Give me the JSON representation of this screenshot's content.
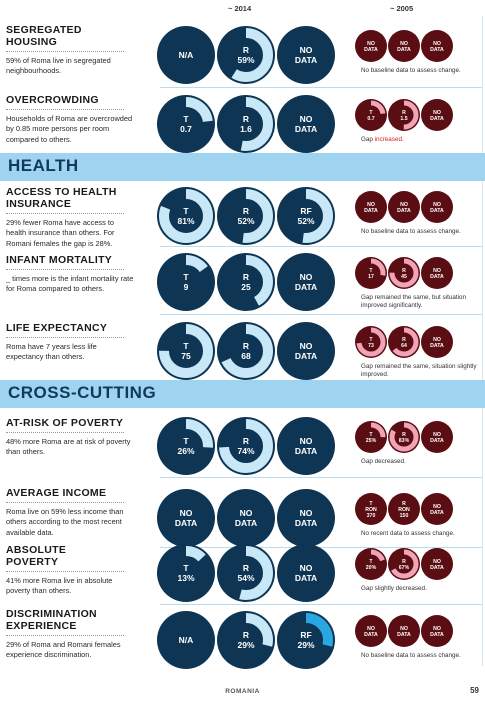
{
  "header": {
    "year_a": "~ 2014",
    "year_b": "~ 2005"
  },
  "colors": {
    "navy": "#0e3554",
    "light_ring": "#c8e8f8",
    "bright_ring": "#2aa7e0",
    "maroon": "#5a0e14",
    "pink_ring": "#f0a4b6"
  },
  "bands": {
    "health": "HEALTH",
    "cross": "CROSS-CUTTING"
  },
  "rows": [
    {
      "title": [
        "SEGREGATED",
        "HOUSING"
      ],
      "desc": "59% of Roma live in segregated neighbourhoods.",
      "big": [
        {
          "label": "N/A",
          "value": ""
        },
        {
          "label": "R",
          "value": "59%",
          "fill": 0.59,
          "ring": "light"
        },
        {
          "label": "NO",
          "value": "DATA"
        }
      ],
      "small": [
        {
          "label": "NO",
          "value": "DATA"
        },
        {
          "label": "NO",
          "value": "DATA"
        },
        {
          "label": "NO",
          "value": "DATA"
        }
      ],
      "note": "No baseline data to assess change.",
      "note_red": ""
    },
    {
      "title": [
        "OVERCROWDING"
      ],
      "desc": "Households of Roma are overcrowded by 0.85 more persons per room compared to others.",
      "big": [
        {
          "label": "T",
          "value": "0.7",
          "fill": 0.23,
          "ring": "light"
        },
        {
          "label": "R",
          "value": "1.6",
          "fill": 0.53,
          "ring": "light"
        },
        {
          "label": "NO",
          "value": "DATA"
        }
      ],
      "small": [
        {
          "label": "T",
          "value": "0.7",
          "fill": 0.23,
          "ring": "pink"
        },
        {
          "label": "R",
          "value": "1.5",
          "fill": 0.5,
          "ring": "pink"
        },
        {
          "label": "NO",
          "value": "DATA"
        }
      ],
      "note": "Gap ",
      "note_red": "increased."
    },
    {
      "title": [
        "ACCESS TO HEALTH",
        "INSURANCE"
      ],
      "desc": "29% fewer Roma have access to health insurance than others. For Romani females the gap is 28%.",
      "big": [
        {
          "label": "T",
          "value": "81%",
          "fill": 0.81,
          "ring": "light"
        },
        {
          "label": "R",
          "value": "52%",
          "fill": 0.52,
          "ring": "light"
        },
        {
          "label": "RF",
          "value": "52%",
          "fill": 0.52,
          "ring": "light"
        }
      ],
      "small": [
        {
          "label": "NO",
          "value": "DATA"
        },
        {
          "label": "NO",
          "value": "DATA"
        },
        {
          "label": "NO",
          "value": "DATA"
        }
      ],
      "note": "No baseline data to assess change.",
      "note_red": ""
    },
    {
      "title": [
        "INFANT MORTALITY"
      ],
      "desc": "_ times more is the infant mortality rate for Roma compared to others.",
      "big": [
        {
          "label": "T",
          "value": "9",
          "fill": 0.15,
          "ring": "light"
        },
        {
          "label": "R",
          "value": "25",
          "fill": 0.42,
          "ring": "light"
        },
        {
          "label": "NO",
          "value": "DATA"
        }
      ],
      "small": [
        {
          "label": "T",
          "value": "17",
          "fill": 0.28,
          "ring": "pink"
        },
        {
          "label": "R",
          "value": "45",
          "fill": 0.75,
          "ring": "pink"
        },
        {
          "label": "NO",
          "value": "DATA"
        }
      ],
      "note": "Gap remained the same, but situation improved significantly.",
      "note_red": ""
    },
    {
      "title": [
        "LIFE EXPECTANCY"
      ],
      "desc": "Roma have 7 years less life expectancy than others.",
      "big": [
        {
          "label": "T",
          "value": "75",
          "fill": 0.75,
          "ring": "light"
        },
        {
          "label": "R",
          "value": "68",
          "fill": 0.68,
          "ring": "light"
        },
        {
          "label": "NO",
          "value": "DATA"
        }
      ],
      "small": [
        {
          "label": "T",
          "value": "73",
          "fill": 0.73,
          "ring": "pink"
        },
        {
          "label": "R",
          "value": "64",
          "fill": 0.64,
          "ring": "pink"
        },
        {
          "label": "NO",
          "value": "DATA"
        }
      ],
      "note": "Gap remained the same, situation slightly improved.",
      "note_red": ""
    },
    {
      "title": [
        "AT-RISK OF POVERTY"
      ],
      "desc": "48% more Roma are at risk of poverty than others.",
      "big": [
        {
          "label": "T",
          "value": "26%",
          "fill": 0.26,
          "ring": "light"
        },
        {
          "label": "R",
          "value": "74%",
          "fill": 0.74,
          "ring": "light"
        },
        {
          "label": "NO",
          "value": "DATA"
        }
      ],
      "small": [
        {
          "label": "T",
          "value": "25%",
          "fill": 0.25,
          "ring": "pink"
        },
        {
          "label": "R",
          "value": "83%",
          "fill": 0.83,
          "ring": "pink"
        },
        {
          "label": "NO",
          "value": "DATA"
        }
      ],
      "note": "Gap decreased.",
      "note_red": ""
    },
    {
      "title": [
        "AVERAGE INCOME"
      ],
      "desc": "Roma live on 59% less income than others according to the most recent available data.",
      "big": [
        {
          "label": "NO",
          "value": "DATA"
        },
        {
          "label": "NO",
          "value": "DATA"
        },
        {
          "label": "NO",
          "value": "DATA"
        }
      ],
      "small": [
        {
          "label": "T",
          "value": "RON 370",
          "fill": 0,
          "ring": "pink"
        },
        {
          "label": "R",
          "value": "RON 150",
          "fill": 0,
          "ring": "pink"
        },
        {
          "label": "NO",
          "value": "DATA"
        }
      ],
      "note": "No recent data to assess change.",
      "note_red": ""
    },
    {
      "title": [
        "ABSOLUTE",
        "POVERTY"
      ],
      "desc": "41% more Roma live in absolute poverty than others.",
      "big": [
        {
          "label": "T",
          "value": "13%",
          "fill": 0.13,
          "ring": "light"
        },
        {
          "label": "R",
          "value": "54%",
          "fill": 0.54,
          "ring": "light"
        },
        {
          "label": "NO",
          "value": "DATA"
        }
      ],
      "small": [
        {
          "label": "T",
          "value": "20%",
          "fill": 0.2,
          "ring": "pink"
        },
        {
          "label": "R",
          "value": "67%",
          "fill": 0.67,
          "ring": "pink"
        },
        {
          "label": "NO",
          "value": "DATA"
        }
      ],
      "note": "Gap slightly decreased.",
      "note_red": ""
    },
    {
      "title": [
        "DISCRIMINATION",
        "EXPERIENCE"
      ],
      "desc": "29% of Roma and Romani females experience discrimination.",
      "big": [
        {
          "label": "N/A",
          "value": ""
        },
        {
          "label": "R",
          "value": "29%",
          "fill": 0.29,
          "ring": "light"
        },
        {
          "label": "RF",
          "value": "29%",
          "fill": 0.29,
          "ring": "bright"
        }
      ],
      "small": [
        {
          "label": "NO",
          "value": "DATA"
        },
        {
          "label": "NO",
          "value": "DATA"
        },
        {
          "label": "NO",
          "value": "DATA"
        }
      ],
      "note": "No baseline data to assess change.",
      "note_red": ""
    }
  ],
  "footer": {
    "country": "ROMANIA",
    "page": "59"
  }
}
